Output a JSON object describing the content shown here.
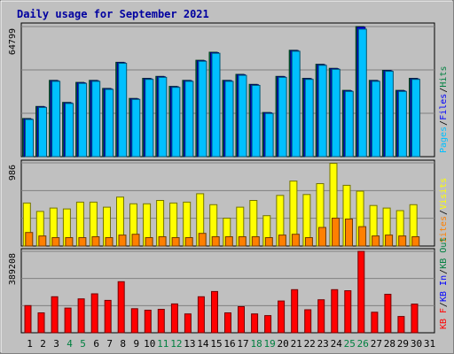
{
  "chart_data": {
    "type": "bar",
    "title": "Daily usage for September 2021",
    "categories": [
      "1",
      "2",
      "3",
      "4",
      "5",
      "6",
      "7",
      "8",
      "9",
      "10",
      "11",
      "12",
      "13",
      "14",
      "15",
      "16",
      "17",
      "18",
      "19",
      "20",
      "21",
      "22",
      "23",
      "24",
      "25",
      "26",
      "27",
      "28",
      "29",
      "30",
      "31"
    ],
    "weekend_categories": [
      "4",
      "5",
      "11",
      "12",
      "18",
      "19",
      "25",
      "26"
    ],
    "panels": [
      {
        "id": "hits-files-pages",
        "ymax": 64799,
        "ylabel_max": "64799",
        "side_labels": [
          {
            "text": "Pages",
            "color": "#00c0ff"
          },
          {
            "text": "/",
            "color": "#000000"
          },
          {
            "text": "Files",
            "color": "#0000ff"
          },
          {
            "text": "/",
            "color": "#000000"
          },
          {
            "text": "Hits",
            "color": "#008040"
          }
        ],
        "series": [
          {
            "name": "Hits",
            "color": "#008040",
            "values": [
              19000,
              25000,
              38000,
              27000,
              37000,
              38000,
              34000,
              47000,
              29000,
              39000,
              40000,
              35000,
              38000,
              48000,
              52000,
              38000,
              41000,
              36000,
              22000,
              40000,
              53000,
              39000,
              46000,
              44000,
              33000,
              64799,
              38000,
              43000,
              33000,
              39000
            ]
          },
          {
            "name": "Files",
            "color": "#0000ff",
            "values": [
              18800,
              24800,
              37800,
              26800,
              36800,
              37800,
              33800,
              46800,
              28800,
              38800,
              39800,
              34800,
              37800,
              47800,
              51800,
              37800,
              40800,
              35800,
              21800,
              39800,
              52800,
              38800,
              45800,
              43800,
              32800,
              64500,
              37800,
              42800,
              32800,
              38800
            ]
          },
          {
            "name": "Pages",
            "color": "#00c0ff",
            "values": [
              18500,
              24500,
              37500,
              26500,
              36500,
              37500,
              33500,
              46500,
              28500,
              38500,
              39500,
              34500,
              37500,
              47500,
              51500,
              37500,
              40500,
              35500,
              21500,
              39500,
              52500,
              38500,
              45500,
              43500,
              32500,
              63500,
              37500,
              42500,
              32500,
              38500
            ]
          }
        ]
      },
      {
        "id": "visits-sites",
        "ymax": 986,
        "ylabel_max": "986",
        "side_labels": [
          {
            "text": "Sites",
            "color": "#ff8000"
          },
          {
            "text": "/",
            "color": "#000000"
          },
          {
            "text": "Visits",
            "color": "#ffff00"
          }
        ],
        "series": [
          {
            "name": "Visits",
            "color": "#ffff00",
            "values": [
              510,
              410,
              450,
              440,
              520,
              520,
              460,
              580,
              500,
              500,
              540,
              510,
              520,
              620,
              490,
              330,
              460,
              540,
              360,
              600,
              770,
              610,
              740,
              980,
              720,
              650,
              480,
              450,
              420,
              490
            ]
          },
          {
            "name": "Sites",
            "color": "#ff8000",
            "values": [
              160,
              120,
              100,
              100,
              100,
              110,
              100,
              130,
              140,
              100,
              110,
              100,
              100,
              150,
              110,
              110,
              110,
              110,
              100,
              130,
              140,
              100,
              220,
              330,
              320,
              230,
              120,
              130,
              120,
              110
            ]
          }
        ]
      },
      {
        "id": "kbf-kbin-kbout",
        "ymax": 389208,
        "ylabel_max": "389208",
        "side_labels": [
          {
            "text": "KB F",
            "color": "#ff0000"
          },
          {
            "text": "/",
            "color": "#000000"
          },
          {
            "text": "KB In",
            "color": "#0000ff"
          },
          {
            "text": "/",
            "color": "#000000"
          },
          {
            "text": "KB Out",
            "color": "#008040"
          }
        ],
        "series": [
          {
            "name": "KB F",
            "color": "#ff0000",
            "values": [
              130000,
              95000,
              172000,
              118000,
              162000,
              186000,
              155000,
              244000,
              115000,
              108000,
              112000,
              138000,
              90000,
              172000,
              197000,
              95000,
              125000,
              90000,
              82000,
              152000,
              206000,
              110000,
              158000,
              206000,
              201000,
              389208,
              98000,
              184000,
              78000,
              137000
            ]
          }
        ]
      }
    ]
  }
}
